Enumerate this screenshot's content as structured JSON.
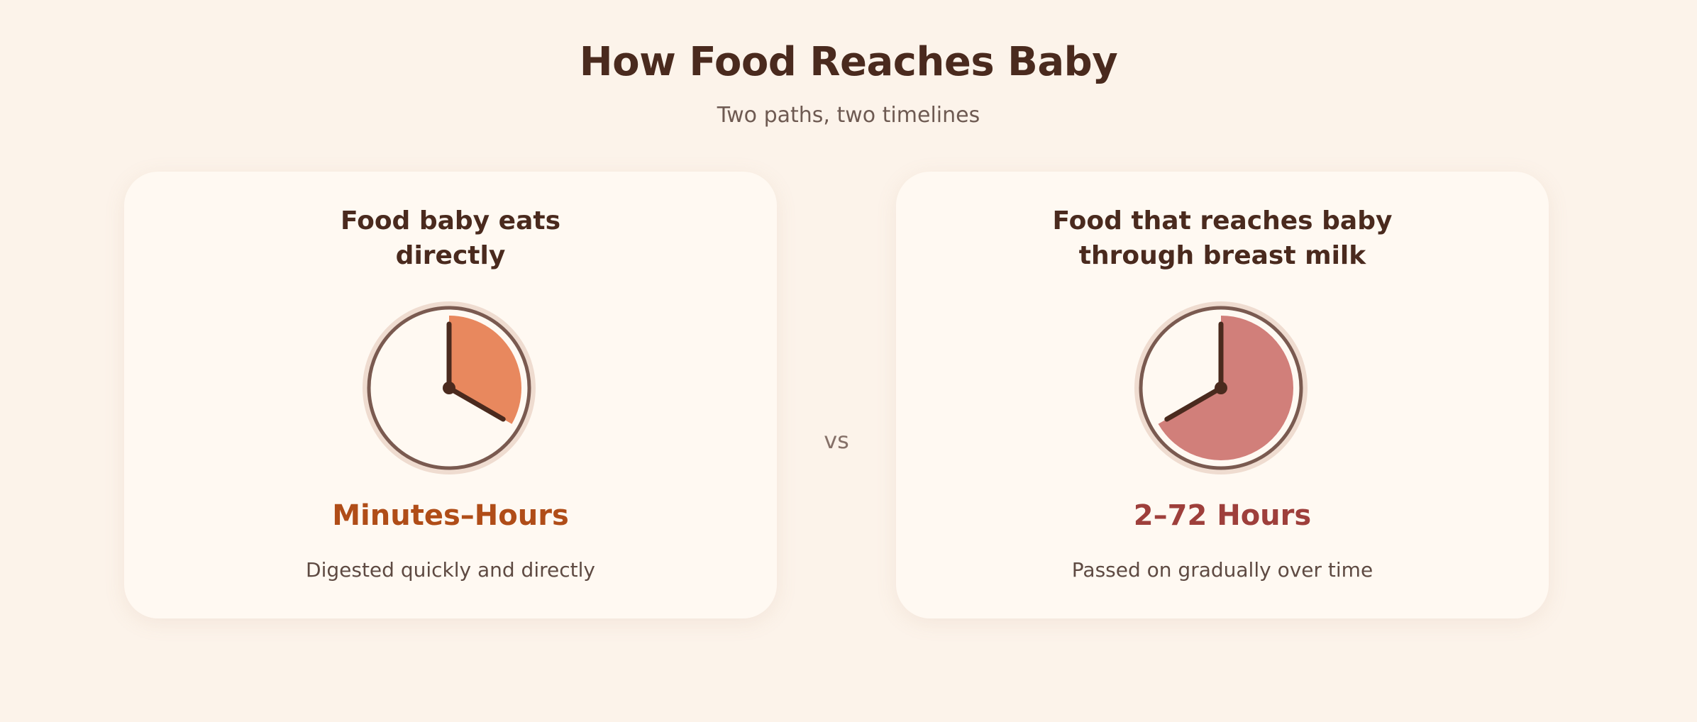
{
  "header": {
    "title": "How Food Reaches Baby",
    "subtitle": "Two paths, two timelines"
  },
  "separator": "vs",
  "cards": [
    {
      "heading_lines": [
        "Food baby eats",
        "directly"
      ],
      "value": "Minutes–Hours",
      "description": "Digested quickly and directly",
      "clock": {
        "fill_color": "#e8885e",
        "filled_fraction": 0.333,
        "hour_hand_hour": 4,
        "minute_hand_minute": 0
      }
    },
    {
      "heading_lines": [
        "Food that reaches baby",
        "through breast milk"
      ],
      "value": "2–72 Hours",
      "description": "Passed on gradually over time",
      "clock": {
        "fill_color": "#d17f7a",
        "filled_fraction": 0.667,
        "hour_hand_hour": 8,
        "minute_hand_minute": 0
      }
    }
  ],
  "colors": {
    "background": "#fcf3ea",
    "card": "#fff9f2",
    "dark": "#4a2a1e",
    "ring_outer": "#efdcd0",
    "ring_inner": "#7a5a50"
  }
}
